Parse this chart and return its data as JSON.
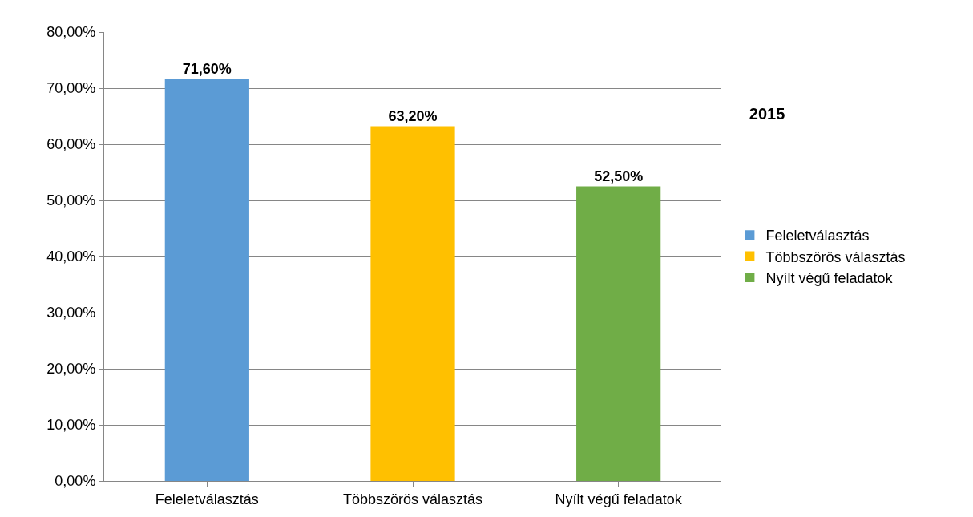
{
  "chart_data": {
    "type": "bar",
    "title": "2015",
    "categories": [
      "Feleletválasztás",
      "Többszörös választás",
      "Nyílt végű feladatok"
    ],
    "series": [
      {
        "name": "Feleletválasztás",
        "color": "#5b9bd5",
        "values": [
          71.6,
          null,
          null
        ],
        "value_labels": [
          "71,60%",
          null,
          null
        ]
      },
      {
        "name": "Többszörös választás",
        "color": "#ffc000",
        "values": [
          null,
          63.2,
          null
        ],
        "value_labels": [
          null,
          "63,20%",
          null
        ]
      },
      {
        "name": "Nyílt végű feladatok",
        "color": "#70ad47",
        "values": [
          null,
          null,
          52.5
        ],
        "value_labels": [
          null,
          null,
          "52,50%"
        ]
      }
    ],
    "ylim": [
      0,
      80
    ],
    "yticks": [
      {
        "value": 0,
        "label": "0,00%"
      },
      {
        "value": 10,
        "label": "10,00%"
      },
      {
        "value": 20,
        "label": "20,00%"
      },
      {
        "value": 30,
        "label": "30,00%"
      },
      {
        "value": 40,
        "label": "40,00%"
      },
      {
        "value": 50,
        "label": "50,00%"
      },
      {
        "value": 60,
        "label": "60,00%"
      },
      {
        "value": 70,
        "label": "70,00%"
      },
      {
        "value": 80,
        "label": "80,00%"
      }
    ],
    "grid": "y",
    "legend": "right"
  }
}
